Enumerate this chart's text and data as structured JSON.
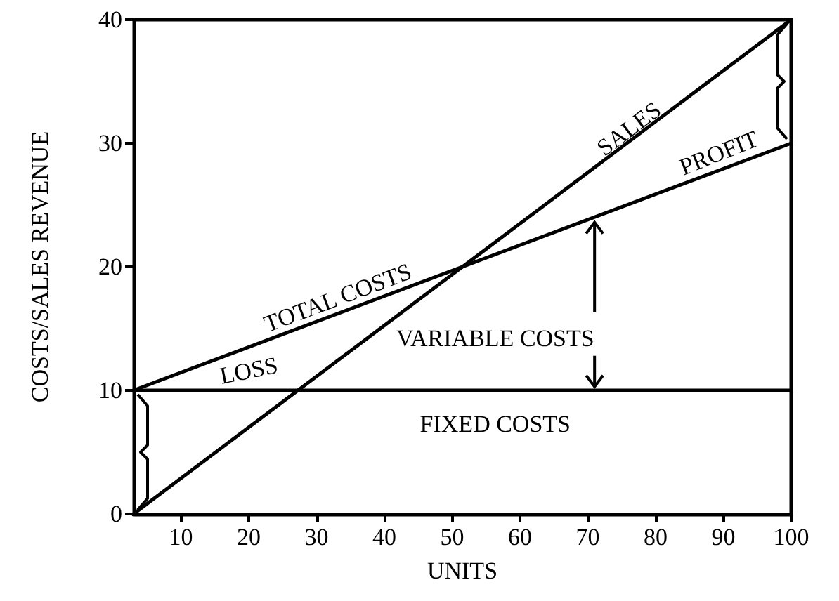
{
  "chart_data": {
    "type": "line",
    "xlabel": "UNITS",
    "ylabel": "COSTS/SALES REVENUE",
    "x": [
      3,
      100
    ],
    "series": [
      {
        "name": "SALES",
        "color": "#000000",
        "values": [
          0,
          40
        ]
      },
      {
        "name": "TOTAL COSTS",
        "color": "#000000",
        "values": [
          10,
          30
        ]
      },
      {
        "name": "FIXED COSTS",
        "color": "#000000",
        "values": [
          10,
          10
        ]
      }
    ],
    "xlim": [
      3,
      100
    ],
    "xticks": [
      10,
      20,
      30,
      40,
      50,
      60,
      70,
      80,
      90,
      100
    ],
    "ylim": [
      0,
      40
    ],
    "yticks": [
      0,
      10,
      20,
      30,
      40
    ],
    "grid": false,
    "legend": false,
    "marker": "none",
    "line_style": "solid",
    "annotations": [
      {
        "text": "PROFIT",
        "x": 100,
        "y": 40
      },
      {
        "text": "VARIABLE COSTS",
        "x": 71,
        "y": 24
      },
      {
        "text": "LOSS",
        "x": 20,
        "y": 10
      }
    ]
  }
}
